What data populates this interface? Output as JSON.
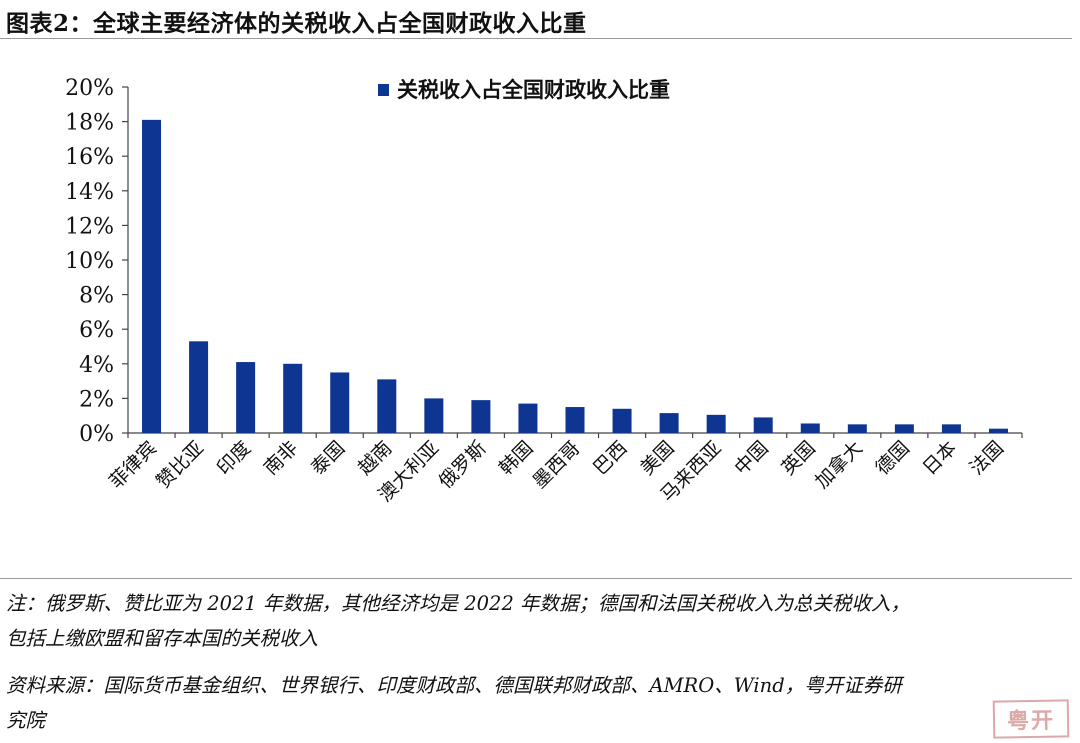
{
  "figure_title": "图表2：全球主要经济体的关税收入占全国财政收入比重",
  "chart_data": {
    "type": "bar",
    "categories": [
      "菲律宾",
      "赞比亚",
      "印度",
      "南非",
      "泰国",
      "越南",
      "澳大利亚",
      "俄罗斯",
      "韩国",
      "墨西哥",
      "巴西",
      "美国",
      "马来西亚",
      "中国",
      "英国",
      "加拿大",
      "德国",
      "日本",
      "法国"
    ],
    "series": [
      {
        "name": "关税收入占全国财政收入比重",
        "values": [
          18.1,
          5.3,
          4.1,
          4.0,
          3.5,
          3.1,
          2.0,
          1.9,
          1.7,
          1.5,
          1.4,
          1.15,
          1.05,
          0.9,
          0.55,
          0.5,
          0.5,
          0.5,
          0.25
        ]
      }
    ],
    "yticks": [
      "0%",
      "2%",
      "4%",
      "6%",
      "8%",
      "10%",
      "12%",
      "14%",
      "16%",
      "18%",
      "20%"
    ],
    "ylim": [
      0,
      20
    ],
    "ylabel": "",
    "xlabel": "",
    "legend_position": "top",
    "bar_color": "#0d3591"
  },
  "notes": {
    "line1": "注：俄罗斯、赞比亚为 2021 年数据，其他经济均是 2022 年数据；德国和法国关税收入为总关税收入，",
    "line2": "包括上缴欧盟和留存本国的关税收入",
    "line3": "资料来源：国际货币基金组织、世界银行、印度财政部、德国联邦财政部、AMRO、Wind，粤开证券研",
    "line4": "究院"
  },
  "watermark_text": "粤开"
}
